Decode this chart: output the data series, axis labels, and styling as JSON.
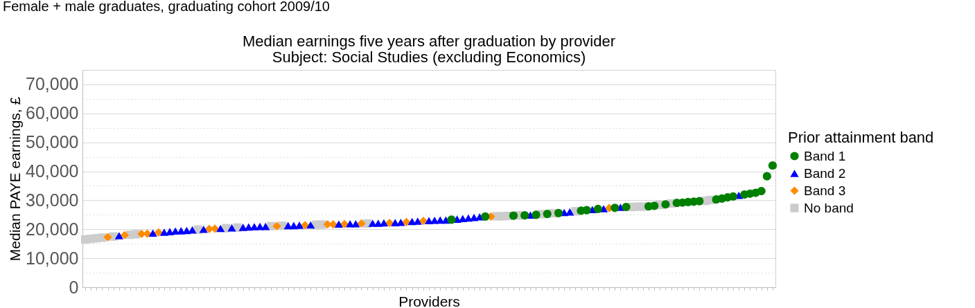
{
  "chart_data": {
    "type": "scatter",
    "title": "Median earnings five years after graduation by provider",
    "subtitle": "Subject: Social Studies (excluding Economics)",
    "annotations": [
      "Female + male graduates, graduating cohort 2009/10"
    ],
    "xlabel": "Providers",
    "ylabel": "Median PAYE earnings, £",
    "legend_title": "Prior attainment band",
    "categories": [
      null,
      null,
      null,
      null,
      null,
      null,
      null,
      null,
      null,
      null,
      null,
      null,
      null,
      null,
      null,
      null,
      null,
      null,
      null,
      null,
      null,
      null,
      null,
      null,
      null,
      null,
      null,
      null,
      null,
      null,
      null,
      null,
      null,
      null,
      null,
      null,
      null,
      null,
      null,
      null,
      null,
      null,
      null,
      null,
      null,
      null,
      null,
      null,
      null,
      null,
      null,
      null,
      null,
      null,
      null,
      null,
      null,
      null,
      null,
      null,
      null,
      null,
      null,
      null,
      null,
      null,
      null,
      null,
      null,
      null,
      null,
      null,
      null,
      null,
      null,
      null,
      null,
      null,
      null,
      null,
      null,
      null,
      null,
      null,
      null,
      null,
      null,
      null,
      null,
      null,
      null,
      null,
      null,
      null,
      null,
      null,
      null,
      null,
      null,
      null,
      null,
      null,
      null,
      null,
      null,
      null,
      null,
      null,
      null,
      null,
      null,
      null,
      null,
      null,
      null,
      null,
      null,
      null,
      null,
      null,
      null,
      null,
      null
    ],
    "series": [
      {
        "name": "Band 1",
        "color": "#008000",
        "marker": "circle",
        "values": [
          null,
          null,
          null,
          null,
          null,
          null,
          null,
          null,
          null,
          null,
          null,
          null,
          null,
          null,
          null,
          null,
          null,
          null,
          null,
          null,
          null,
          null,
          null,
          null,
          null,
          null,
          null,
          null,
          null,
          null,
          null,
          null,
          null,
          null,
          null,
          null,
          null,
          null,
          null,
          null,
          null,
          null,
          null,
          null,
          null,
          null,
          null,
          null,
          null,
          null,
          null,
          null,
          null,
          null,
          null,
          null,
          null,
          null,
          null,
          null,
          null,
          null,
          null,
          null,
          null,
          23300,
          null,
          null,
          null,
          null,
          null,
          24400,
          null,
          null,
          null,
          null,
          24700,
          null,
          24800,
          null,
          25000,
          null,
          25300,
          null,
          25600,
          null,
          null,
          null,
          26400,
          26600,
          null,
          27000,
          null,
          null,
          27400,
          null,
          27700,
          null,
          null,
          null,
          27900,
          28100,
          null,
          28600,
          null,
          29100,
          29200,
          29400,
          29500,
          29700,
          null,
          null,
          30300,
          30600,
          31000,
          31300,
          null,
          32000,
          32300,
          32600,
          33200,
          38300,
          42000
        ]
      },
      {
        "name": "Band 2",
        "color": "#0000ff",
        "marker": "triangle",
        "values": [
          null,
          null,
          null,
          null,
          null,
          null,
          17800,
          null,
          null,
          null,
          null,
          null,
          18700,
          null,
          19000,
          19200,
          19400,
          19500,
          19600,
          19800,
          null,
          20000,
          null,
          null,
          20300,
          null,
          20500,
          null,
          20700,
          20800,
          20900,
          21000,
          21000,
          null,
          null,
          null,
          21300,
          21300,
          21400,
          null,
          21500,
          null,
          null,
          null,
          null,
          21800,
          null,
          21900,
          21900,
          null,
          null,
          22100,
          22100,
          22200,
          null,
          22300,
          22400,
          null,
          22700,
          22800,
          null,
          23000,
          23100,
          23200,
          23200,
          null,
          23500,
          23700,
          23900,
          24100,
          24300,
          null,
          null,
          null,
          null,
          null,
          null,
          null,
          null,
          24900,
          null,
          null,
          null,
          null,
          null,
          25800,
          26000,
          null,
          null,
          null,
          26800,
          null,
          27100,
          null,
          null,
          27600,
          null,
          null,
          null,
          null,
          null,
          null,
          null,
          null,
          null,
          null,
          null,
          null,
          null,
          null,
          null,
          null,
          null,
          null,
          null,
          null,
          31700,
          null,
          null,
          null,
          null,
          null,
          null
        ]
      },
      {
        "name": "Band 3",
        "color": "#ff8c00",
        "marker": "diamond",
        "values": [
          null,
          null,
          null,
          null,
          17300,
          null,
          null,
          18000,
          null,
          null,
          18400,
          18500,
          null,
          18900,
          null,
          null,
          null,
          null,
          null,
          null,
          null,
          null,
          20100,
          20200,
          null,
          null,
          null,
          null,
          null,
          null,
          null,
          null,
          null,
          null,
          21100,
          null,
          null,
          null,
          null,
          21400,
          null,
          null,
          null,
          21700,
          21700,
          null,
          21800,
          null,
          null,
          22000,
          null,
          null,
          null,
          null,
          22200,
          null,
          null,
          22500,
          null,
          null,
          22900,
          null,
          null,
          null,
          null,
          null,
          null,
          null,
          null,
          null,
          null,
          null,
          24400,
          null,
          null,
          null,
          null,
          null,
          null,
          null,
          null,
          null,
          null,
          null,
          null,
          null,
          null,
          null,
          null,
          null,
          null,
          null,
          null,
          27300,
          null,
          null,
          null,
          null,
          null,
          null,
          null,
          null,
          null,
          null,
          null,
          null,
          null,
          null,
          null,
          null,
          null,
          null,
          null,
          null,
          null,
          null,
          null,
          null,
          null,
          null,
          null,
          null,
          null
        ]
      },
      {
        "name": "No band",
        "color": "#cccccc",
        "marker": "square",
        "values": [
          16500,
          16700,
          16900,
          17100,
          null,
          17500,
          null,
          null,
          18100,
          18300,
          null,
          null,
          null,
          null,
          null,
          null,
          null,
          null,
          null,
          null,
          19900,
          null,
          null,
          null,
          null,
          20400,
          null,
          20600,
          null,
          null,
          null,
          null,
          null,
          21100,
          null,
          21200,
          null,
          null,
          null,
          null,
          null,
          21600,
          21600,
          null,
          null,
          null,
          null,
          null,
          null,
          null,
          22000,
          null,
          null,
          null,
          null,
          null,
          null,
          null,
          null,
          null,
          null,
          null,
          null,
          null,
          null,
          null,
          null,
          null,
          null,
          null,
          null,
          null,
          null,
          24500,
          24500,
          24600,
          null,
          24800,
          null,
          null,
          null,
          25200,
          null,
          25500,
          null,
          null,
          null,
          26200,
          null,
          null,
          null,
          null,
          null,
          null,
          null,
          null,
          null,
          27700,
          27800,
          27800,
          null,
          null,
          28400,
          null,
          28900,
          null,
          null,
          null,
          null,
          null,
          29800,
          30100,
          null,
          null,
          null,
          null,
          null,
          null,
          null,
          null,
          null,
          null,
          null
        ]
      }
    ],
    "ylim": [
      0,
      75000
    ],
    "yticks": [
      0,
      {
        "value": 5000,
        "label": null
      },
      {
        "value": 10000,
        "label": "10,000"
      },
      {
        "value": 15000,
        "label": null
      },
      {
        "value": 20000,
        "label": "20,000"
      },
      {
        "value": 25000,
        "label": null
      },
      {
        "value": 30000,
        "label": "30,000"
      },
      {
        "value": 35000,
        "label": null
      },
      {
        "value": 40000,
        "label": "40,000"
      },
      {
        "value": 45000,
        "label": null
      },
      {
        "value": 50000,
        "label": "50,000"
      },
      {
        "value": 55000,
        "label": null
      },
      {
        "value": 60000,
        "label": "60,000"
      },
      {
        "value": 65000,
        "label": null
      },
      {
        "value": 70000,
        "label": "70,000"
      }
    ],
    "grid": "y",
    "legend": "right"
  }
}
